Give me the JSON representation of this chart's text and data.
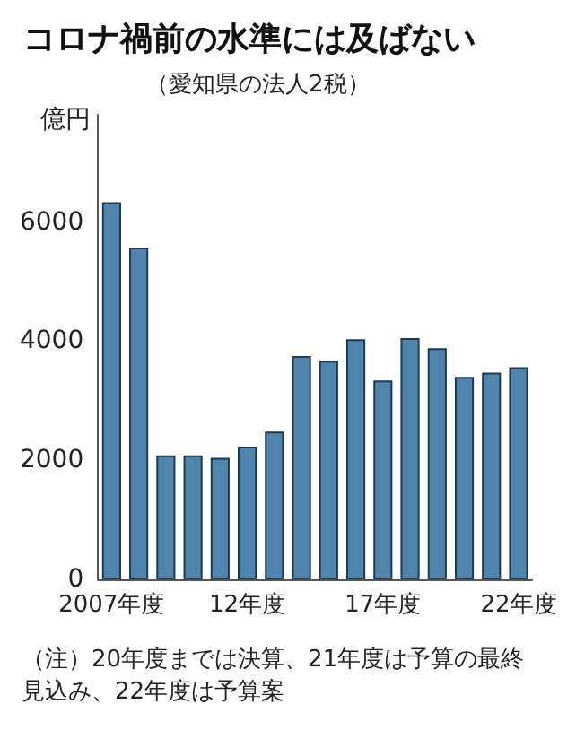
{
  "chart_data": {
    "type": "bar",
    "title": "コロナ禍前の水準には及ばない",
    "subtitle": "（愛知県の法人2税）",
    "ylabel": "億円",
    "categories": [
      "2007年度",
      null,
      null,
      null,
      null,
      "12年度",
      null,
      null,
      null,
      null,
      "17年度",
      null,
      null,
      null,
      null,
      "22年度"
    ],
    "values": [
      6330,
      5570,
      2080,
      2080,
      2040,
      2230,
      2480,
      3750,
      3670,
      4030,
      3340,
      4050,
      3880,
      3400,
      3470,
      3560
    ],
    "color": "#4f85ad",
    "ylim": [
      0,
      7800
    ],
    "yticks": [
      0,
      2000,
      4000,
      6000
    ],
    "grid": false,
    "annotations": [
      "（注）20年度までは決算、21年度は予算の最終見込み、22年度は予算案"
    ]
  }
}
